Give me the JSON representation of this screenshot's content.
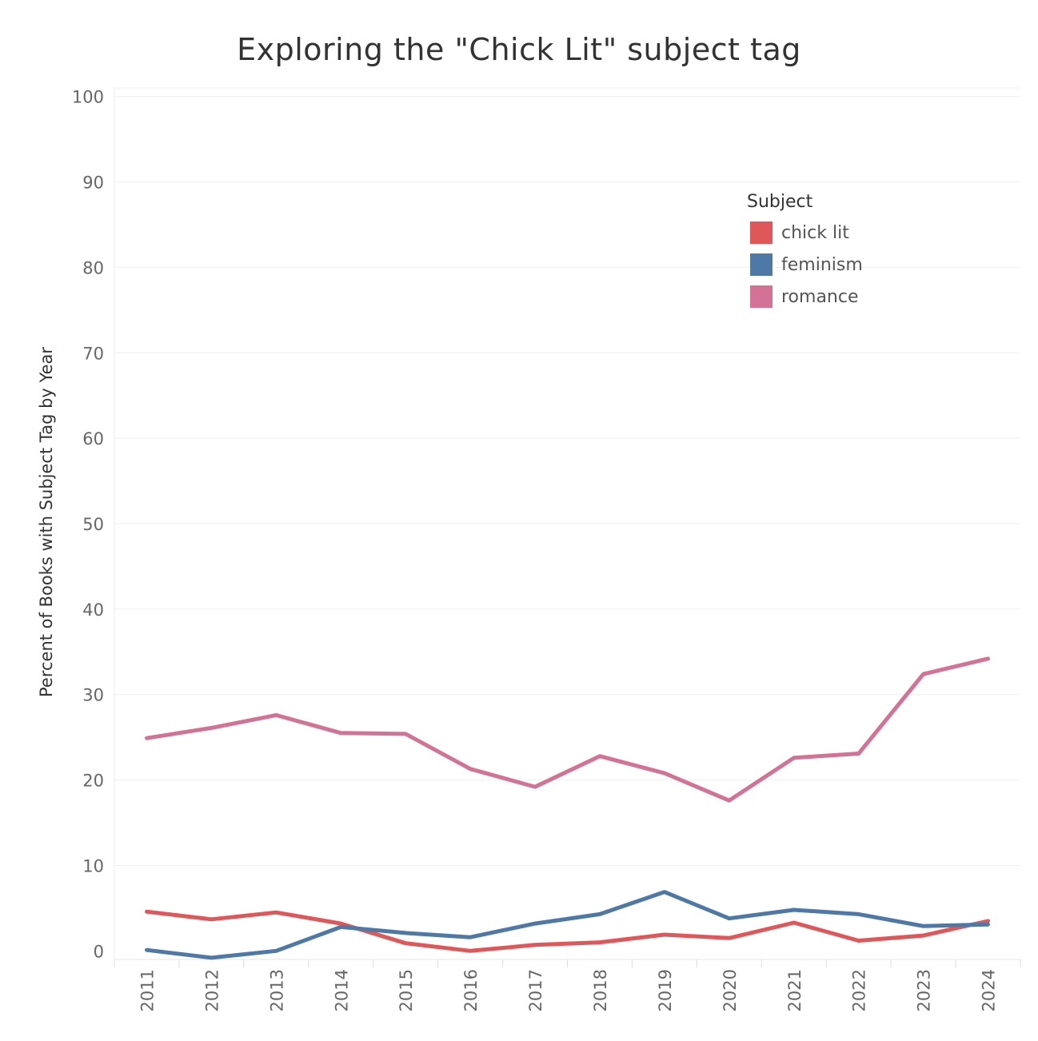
{
  "chart_data": {
    "type": "line",
    "title": "Exploring the \"Chick Lit\" subject tag",
    "ylabel": "Percent of Books with Subject Tag by Year",
    "xlabel": "",
    "ylim": [
      -1,
      101
    ],
    "y_ticks": [
      0,
      10,
      20,
      30,
      40,
      50,
      60,
      70,
      80,
      90,
      100
    ],
    "grid": true,
    "legend_position": "top-right",
    "legend_title": "Subject",
    "x": [
      "2011",
      "2012",
      "2013",
      "2014",
      "2015",
      "2016",
      "2017",
      "2018",
      "2019",
      "2020",
      "2021",
      "2022",
      "2023",
      "2024"
    ],
    "series": [
      {
        "name": "chick lit",
        "color": "#e05759",
        "values": [
          4.6,
          3.7,
          4.5,
          3.2,
          0.9,
          0.0,
          0.7,
          1.0,
          1.9,
          1.5,
          3.3,
          1.2,
          1.8,
          3.5
        ]
      },
      {
        "name": "feminism",
        "color": "#4e79a7",
        "values": [
          0.1,
          -0.8,
          0.0,
          2.8,
          2.1,
          1.6,
          3.2,
          4.3,
          6.9,
          3.8,
          4.8,
          4.3,
          2.9,
          3.1
        ]
      },
      {
        "name": "romance",
        "color": "#d37295",
        "values": [
          24.9,
          26.1,
          27.6,
          25.5,
          25.4,
          21.3,
          19.2,
          22.8,
          20.8,
          17.6,
          22.6,
          23.1,
          32.4,
          34.2
        ]
      }
    ]
  }
}
